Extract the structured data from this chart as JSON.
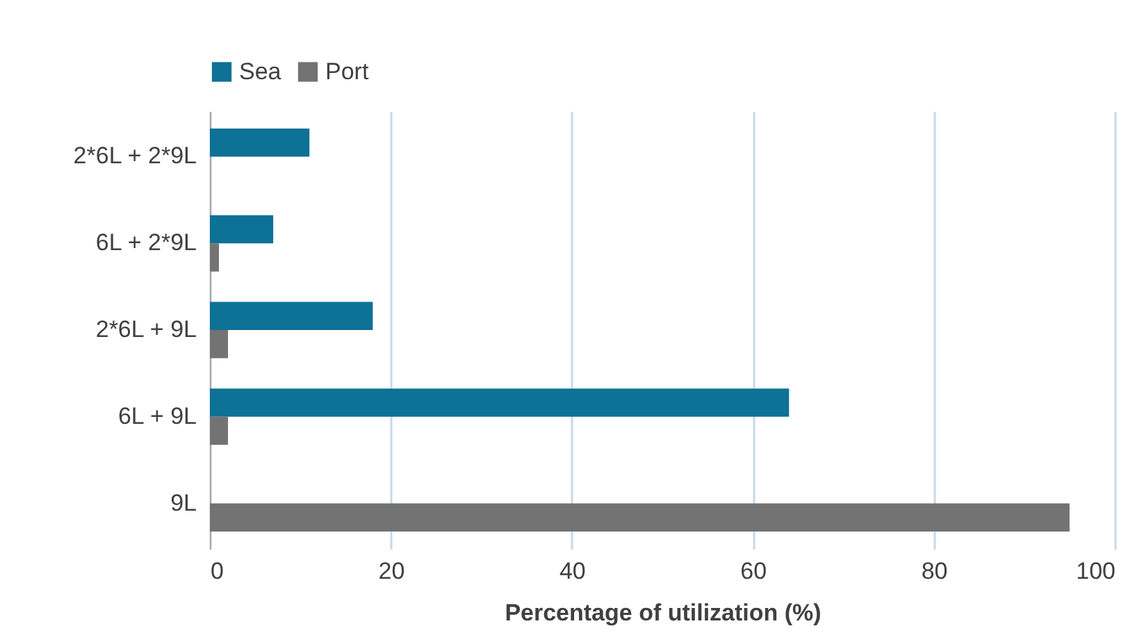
{
  "chart_data": {
    "type": "bar",
    "orientation": "horizontal",
    "xlabel": "Percentage of utilization (%)",
    "categories": [
      "2*6L + 2*9L",
      "6L + 2*9L",
      "2*6L + 9L",
      "6L + 9L",
      "9L"
    ],
    "series": [
      {
        "name": "Sea",
        "color": "#0e7196",
        "values": [
          11,
          7,
          18,
          64,
          null
        ]
      },
      {
        "name": "Port",
        "color": "#737373",
        "values": [
          null,
          1,
          2,
          2,
          95
        ]
      }
    ],
    "xlim": [
      0,
      100
    ],
    "xticks": [
      0,
      20,
      40,
      60,
      80,
      100
    ],
    "grid": "x",
    "legend": "top"
  }
}
